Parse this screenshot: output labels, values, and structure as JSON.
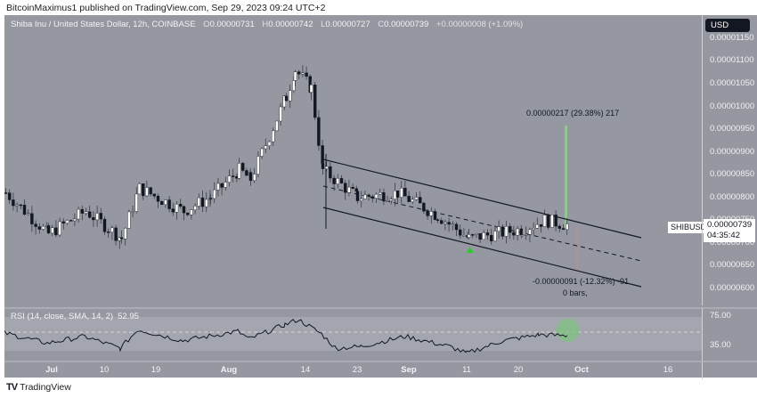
{
  "header": {
    "publish_text": "BitcoinMaximus1 published on TradingView.com, Sep 29, 2023 09:24 UTC+2"
  },
  "legend": {
    "title": "Shiba Inu / United States Dollar, 12h, COINBASE",
    "open_label": "O",
    "open": "0.00000731",
    "high_label": "H",
    "high": "0.00000742",
    "low_label": "L",
    "low": "0.00000727",
    "close_label": "C",
    "close": "0.00000739",
    "change": "+0.00000008 (+1.09%)"
  },
  "price_axis": {
    "currency_button": "USD",
    "labels": [
      "0.00001150",
      "0.00001100",
      "0.00001050",
      "0.00001000",
      "0.00000950",
      "0.00000900",
      "0.00000850",
      "0.00000800",
      "0.00000750",
      "0.00000700",
      "0.00000650",
      "0.00000600"
    ],
    "current_price": "0.00000739",
    "countdown": "04:35:42",
    "symbol": "SHIBUSD"
  },
  "annotations": {
    "measure_up": "0.00000217 (29.38%) 217",
    "measure_down": "-0.00000091 (-12.32%) -91",
    "bars": "0 bars,"
  },
  "rsi": {
    "title": "RSI (14, close, SMA, 14, 2)",
    "value": "52.95",
    "axis_labels": [
      "75.00",
      "35.00"
    ]
  },
  "time_axis": {
    "labels": [
      "Jul",
      "10",
      "19",
      "Aug",
      "14",
      "23",
      "Sep",
      "11",
      "20",
      "Oct",
      "16"
    ]
  },
  "footer": {
    "logo": "TV",
    "brand": "TradingView"
  },
  "colors": {
    "background": "#9598a1",
    "bull_candle": "#ffffff",
    "bear_candle": "#131722",
    "channel": "#131722",
    "measure_up": "#8fce8f",
    "measure_down": "#c98a8a",
    "highlight_circle": "#7fc27f",
    "triangle": "#1fd21f"
  },
  "chart_data": {
    "type": "candlestick",
    "title": "Shiba Inu / United States Dollar, 12h, COINBASE",
    "xlabel": "",
    "ylabel": "USD",
    "ylim": [
      5.8e-06,
      1.16e-05
    ],
    "x_ticks": [
      "Jul",
      "10",
      "19",
      "Aug",
      "14",
      "23",
      "Sep",
      "11",
      "20",
      "Oct",
      "16"
    ],
    "y_ticks": [
      1.15e-05,
      1.1e-05,
      1.05e-05,
      1e-05,
      9.5e-06,
      9e-06,
      8.5e-06,
      8e-06,
      7.5e-06,
      7e-06,
      6.5e-06,
      6e-06
    ],
    "approx_close_path": [
      {
        "date": "Jun 28",
        "close": 8.1e-06
      },
      {
        "date": "Jul 3",
        "close": 7.2e-06
      },
      {
        "date": "Jul 8",
        "close": 7.7e-06
      },
      {
        "date": "Jul 12",
        "close": 7.1e-06
      },
      {
        "date": "Jul 15",
        "close": 8.2e-06
      },
      {
        "date": "Jul 21",
        "close": 7.7e-06
      },
      {
        "date": "Jul 28",
        "close": 8e-06
      },
      {
        "date": "Aug 1",
        "close": 8.6e-06
      },
      {
        "date": "Aug 5",
        "close": 8.4e-06
      },
      {
        "date": "Aug 9",
        "close": 1.02e-05
      },
      {
        "date": "Aug 12",
        "close": 1.08e-05
      },
      {
        "date": "Aug 14",
        "close": 1.04e-05
      },
      {
        "date": "Aug 17",
        "close": 8.6e-06
      },
      {
        "date": "Aug 22",
        "close": 8e-06
      },
      {
        "date": "Aug 30",
        "close": 8.1e-06
      },
      {
        "date": "Sep 5",
        "close": 7.6e-06
      },
      {
        "date": "Sep 11",
        "close": 7.1e-06
      },
      {
        "date": "Sep 20",
        "close": 7.3e-06
      },
      {
        "date": "Sep 24",
        "close": 7.5e-06
      },
      {
        "date": "Sep 29",
        "close": 7.39e-06
      }
    ],
    "last_ohlc": {
      "open": 7.31e-06,
      "high": 7.42e-06,
      "low": 7.27e-06,
      "close": 7.39e-06,
      "change": 8e-08,
      "change_pct": 1.09
    },
    "descending_channel": {
      "upper": [
        {
          "date": "Aug 17",
          "price": 8.7e-06
        },
        {
          "date": "Oct 13",
          "price": 7.1e-06
        }
      ],
      "middle_dashed": [
        {
          "date": "Aug 17",
          "price": 8.1e-06
        },
        {
          "date": "Oct 13",
          "price": 6.6e-06
        }
      ],
      "lower": [
        {
          "date": "Aug 17",
          "price": 7.6e-06
        },
        {
          "date": "Oct 13",
          "price": 6.1e-06
        }
      ]
    },
    "measure_annotations": [
      {
        "text": "0.00000217 (29.38%) 217",
        "direction": "up"
      },
      {
        "text": "-0.00000091 (-12.32%) -91",
        "direction": "down"
      }
    ],
    "markers": [
      {
        "type": "triangle-up",
        "date": "Sep 11",
        "color": "#1fd21f"
      }
    ],
    "indicator": {
      "name": "RSI (14, close, SMA, 14, 2)",
      "last_value": 52.95,
      "bands": [
        75,
        35
      ],
      "approx_path": [
        {
          "date": "Jun 28",
          "value": 56
        },
        {
          "date": "Jul 3",
          "value": 44
        },
        {
          "date": "Jul 8",
          "value": 52
        },
        {
          "date": "Jul 12",
          "value": 38
        },
        {
          "date": "Jul 15",
          "value": 60
        },
        {
          "date": "Jul 21",
          "value": 47
        },
        {
          "date": "Aug 1",
          "value": 58
        },
        {
          "date": "Aug 5",
          "value": 49
        },
        {
          "date": "Aug 9",
          "value": 66
        },
        {
          "date": "Aug 13",
          "value": 72
        },
        {
          "date": "Aug 17",
          "value": 55
        },
        {
          "date": "Aug 19",
          "value": 38
        },
        {
          "date": "Aug 26",
          "value": 40
        },
        {
          "date": "Sep 2",
          "value": 52
        },
        {
          "date": "Sep 7",
          "value": 40
        },
        {
          "date": "Sep 11",
          "value": 32
        },
        {
          "date": "Sep 16",
          "value": 47
        },
        {
          "date": "Sep 24",
          "value": 54
        },
        {
          "date": "Sep 29",
          "value": 52.95
        }
      ]
    }
  }
}
